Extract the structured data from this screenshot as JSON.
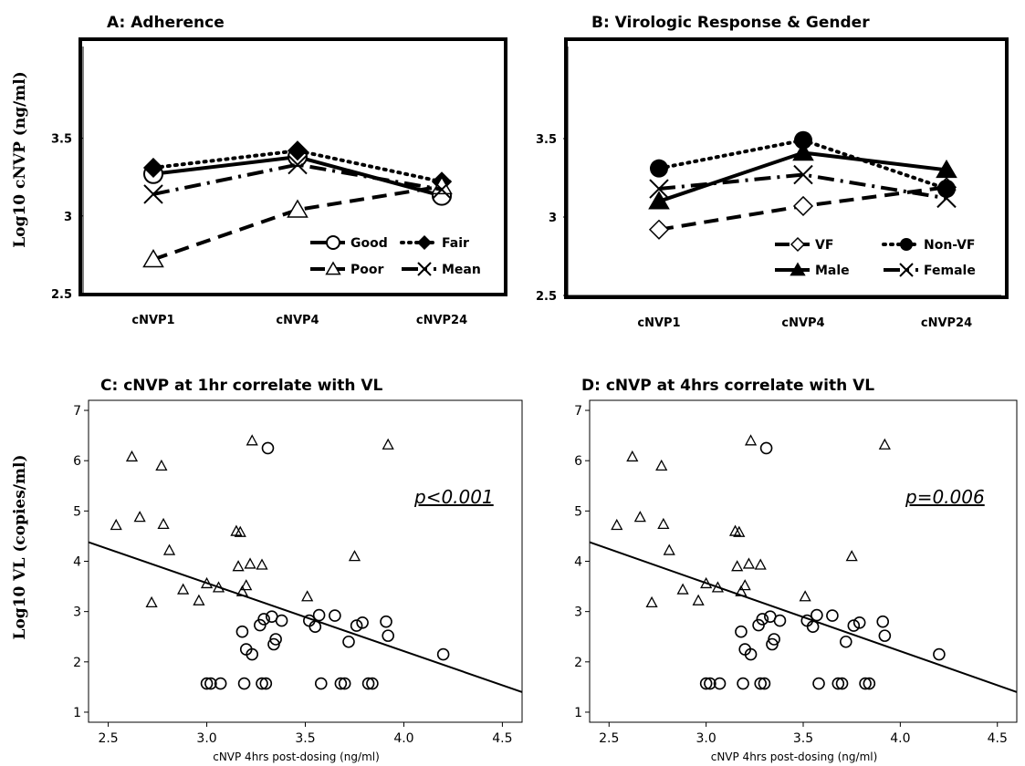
{
  "y_axis_label_top": "Log10 cNVP (ng/ml)",
  "y_axis_label_bottom": "Log10 VL (copies/ml)",
  "chart_data": [
    {
      "type": "line",
      "title": "A: Adherence",
      "categories": [
        "cNVP1",
        "cNVP4",
        "cNVP24"
      ],
      "ylim": [
        2.5,
        3.75
      ],
      "yticks": [
        "2.5",
        "3",
        "3.5"
      ],
      "legend_position": "bottom-right",
      "series": [
        {
          "name": "Good",
          "marker": "circle-open",
          "line": "solid",
          "values": [
            3.27,
            3.38,
            3.13
          ]
        },
        {
          "name": "Fair",
          "marker": "diamond-filled",
          "line": "dotted",
          "values": [
            3.31,
            3.42,
            3.22
          ]
        },
        {
          "name": "Poor",
          "marker": "triangle-open",
          "line": "dashed",
          "values": [
            2.72,
            3.04,
            3.19
          ]
        },
        {
          "name": "Mean",
          "marker": "x",
          "line": "dashdot",
          "values": [
            3.14,
            3.33,
            3.17
          ]
        }
      ]
    },
    {
      "type": "line",
      "title": "B: Virologic Response & Gender",
      "categories": [
        "cNVP1",
        "cNVP4",
        "cNVP24"
      ],
      "ylim": [
        2.5,
        3.75
      ],
      "yticks": [
        "2.5",
        "3",
        "3.5"
      ],
      "legend_position": "bottom-right",
      "series": [
        {
          "name": "VF",
          "marker": "diamond-open",
          "line": "dashed",
          "values": [
            2.92,
            3.07,
            3.19
          ]
        },
        {
          "name": "Non-VF",
          "marker": "circle-filled",
          "line": "dotted",
          "values": [
            3.31,
            3.49,
            3.18
          ]
        },
        {
          "name": "Male",
          "marker": "triangle-filled",
          "line": "solid",
          "values": [
            3.1,
            3.41,
            3.3
          ]
        },
        {
          "name": "Female",
          "marker": "x",
          "line": "dashdot",
          "values": [
            3.18,
            3.27,
            3.12
          ]
        }
      ]
    },
    {
      "type": "scatter",
      "title": "C: cNVP at 1hr correlate with VL",
      "xlabel": "cNVP 4hrs post-dosing (ng/ml)",
      "xlim": [
        2.4,
        4.6
      ],
      "ylim": [
        0.8,
        7.2
      ],
      "xticks": [
        "2.5",
        "3.0",
        "3.5",
        "4.0",
        "4.5"
      ],
      "yticks": [
        "1",
        "2",
        "3",
        "4",
        "5",
        "6",
        "7"
      ],
      "annotation": "p<0.001",
      "regression_line": {
        "x": [
          2.4,
          4.6
        ],
        "y": [
          4.38,
          1.4
        ]
      },
      "triangles": [
        [
          2.54,
          4.72
        ],
        [
          2.62,
          6.08
        ],
        [
          2.66,
          4.88
        ],
        [
          2.72,
          3.18
        ],
        [
          2.77,
          5.9
        ],
        [
          2.78,
          4.74
        ],
        [
          2.81,
          4.22
        ],
        [
          2.88,
          3.44
        ],
        [
          2.96,
          3.22
        ],
        [
          3.0,
          3.56
        ],
        [
          3.06,
          3.48
        ],
        [
          3.15,
          4.6
        ],
        [
          3.16,
          3.9
        ],
        [
          3.17,
          4.58
        ],
        [
          3.18,
          3.4
        ],
        [
          3.2,
          3.52
        ],
        [
          3.22,
          3.95
        ],
        [
          3.23,
          6.4
        ],
        [
          3.28,
          3.93
        ],
        [
          3.51,
          3.3
        ],
        [
          3.75,
          4.1
        ],
        [
          3.92,
          6.32
        ]
      ],
      "circles": [
        [
          3.0,
          1.57
        ],
        [
          3.02,
          1.57
        ],
        [
          3.07,
          1.57
        ],
        [
          3.18,
          2.6
        ],
        [
          3.19,
          1.57
        ],
        [
          3.2,
          2.25
        ],
        [
          3.23,
          2.15
        ],
        [
          3.27,
          2.73
        ],
        [
          3.28,
          1.57
        ],
        [
          3.29,
          2.85
        ],
        [
          3.3,
          1.57
        ],
        [
          3.31,
          6.25
        ],
        [
          3.33,
          2.9
        ],
        [
          3.34,
          2.35
        ],
        [
          3.35,
          2.45
        ],
        [
          3.38,
          2.82
        ],
        [
          3.52,
          2.82
        ],
        [
          3.55,
          2.7
        ],
        [
          3.57,
          2.93
        ],
        [
          3.58,
          1.57
        ],
        [
          3.65,
          2.92
        ],
        [
          3.68,
          1.57
        ],
        [
          3.7,
          1.57
        ],
        [
          3.72,
          2.4
        ],
        [
          3.76,
          2.72
        ],
        [
          3.79,
          2.78
        ],
        [
          3.82,
          1.57
        ],
        [
          3.84,
          1.57
        ],
        [
          3.91,
          2.8
        ],
        [
          3.92,
          2.52
        ],
        [
          4.2,
          2.15
        ]
      ]
    },
    {
      "type": "scatter",
      "title": "D: cNVP at 4hrs correlate with VL",
      "xlabel": "cNVP 4hrs post-dosing (ng/ml)",
      "xlim": [
        2.4,
        4.6
      ],
      "ylim": [
        0.8,
        7.2
      ],
      "xticks": [
        "2.5",
        "3.0",
        "3.5",
        "4.0",
        "4.5"
      ],
      "yticks": [
        "1",
        "2",
        "3",
        "4",
        "5",
        "6",
        "7"
      ],
      "annotation": "p=0.006",
      "regression_line": {
        "x": [
          2.4,
          4.6
        ],
        "y": [
          4.38,
          1.4
        ]
      },
      "triangles": [
        [
          2.54,
          4.72
        ],
        [
          2.62,
          6.08
        ],
        [
          2.66,
          4.88
        ],
        [
          2.72,
          3.18
        ],
        [
          2.77,
          5.9
        ],
        [
          2.78,
          4.74
        ],
        [
          2.81,
          4.22
        ],
        [
          2.88,
          3.44
        ],
        [
          2.96,
          3.22
        ],
        [
          3.0,
          3.56
        ],
        [
          3.06,
          3.48
        ],
        [
          3.15,
          4.6
        ],
        [
          3.16,
          3.9
        ],
        [
          3.17,
          4.58
        ],
        [
          3.18,
          3.4
        ],
        [
          3.2,
          3.52
        ],
        [
          3.22,
          3.95
        ],
        [
          3.23,
          6.4
        ],
        [
          3.28,
          3.93
        ],
        [
          3.51,
          3.3
        ],
        [
          3.75,
          4.1
        ],
        [
          3.92,
          6.32
        ]
      ],
      "circles": [
        [
          3.0,
          1.57
        ],
        [
          3.02,
          1.57
        ],
        [
          3.07,
          1.57
        ],
        [
          3.18,
          2.6
        ],
        [
          3.19,
          1.57
        ],
        [
          3.2,
          2.25
        ],
        [
          3.23,
          2.15
        ],
        [
          3.27,
          2.73
        ],
        [
          3.28,
          1.57
        ],
        [
          3.29,
          2.85
        ],
        [
          3.3,
          1.57
        ],
        [
          3.31,
          6.25
        ],
        [
          3.33,
          2.9
        ],
        [
          3.34,
          2.35
        ],
        [
          3.35,
          2.45
        ],
        [
          3.38,
          2.82
        ],
        [
          3.52,
          2.82
        ],
        [
          3.55,
          2.7
        ],
        [
          3.57,
          2.93
        ],
        [
          3.58,
          1.57
        ],
        [
          3.65,
          2.92
        ],
        [
          3.68,
          1.57
        ],
        [
          3.7,
          1.57
        ],
        [
          3.72,
          2.4
        ],
        [
          3.76,
          2.72
        ],
        [
          3.79,
          2.78
        ],
        [
          3.82,
          1.57
        ],
        [
          3.84,
          1.57
        ],
        [
          3.91,
          2.8
        ],
        [
          3.92,
          2.52
        ],
        [
          4.2,
          2.15
        ]
      ]
    }
  ]
}
